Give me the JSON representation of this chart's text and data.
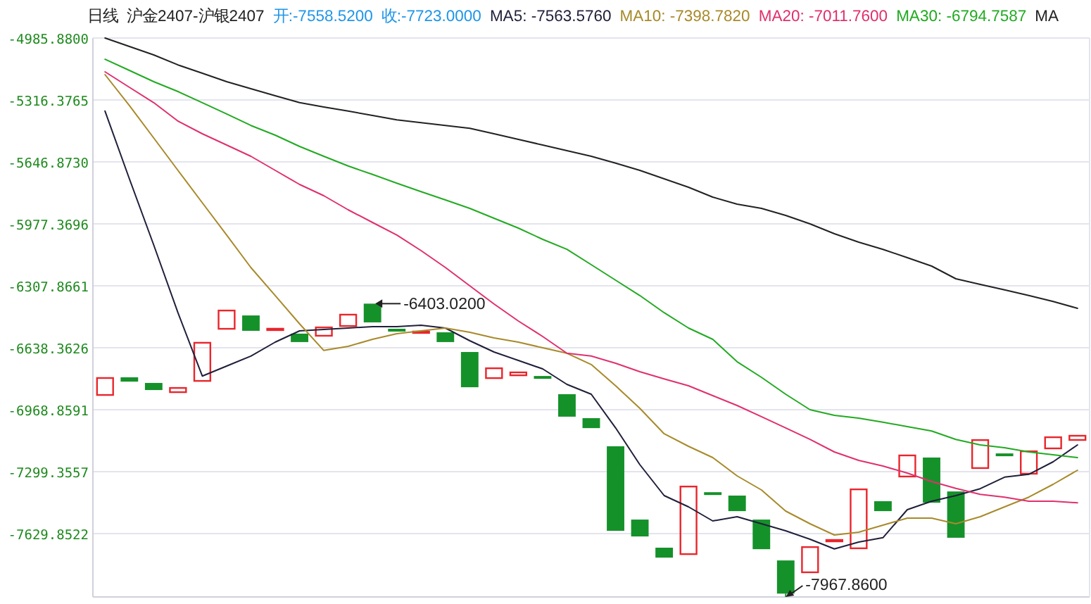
{
  "chart_data": {
    "type": "candlestick",
    "title": "日线",
    "subtitle": "沪金2407-沪银2407",
    "annotations": [
      "开:-7558.5200",
      "收:-7723.0000",
      "-6403.0200",
      "-7967.8600"
    ],
    "categories": [
      null,
      null,
      null,
      null,
      null,
      null,
      null,
      null,
      null,
      null,
      null,
      null,
      null,
      null,
      null,
      null,
      null,
      null,
      null,
      null,
      null,
      null,
      null,
      null,
      null,
      null,
      null,
      null,
      null,
      null,
      null,
      null,
      null,
      null,
      null,
      null,
      null,
      null,
      null,
      null,
      null
    ],
    "ohlc": [
      [
        -6894,
        -6796,
        -6894,
        -6796
      ],
      [
        -6796,
        -6796,
        -6819,
        -6819
      ],
      [
        -6826,
        -6826,
        -6864,
        -6864
      ],
      [
        -6879,
        -6849,
        -6879,
        -6849
      ],
      [
        -6819,
        -6608,
        -6819,
        -6608
      ],
      [
        -6541,
        -6436,
        -6541,
        -6436
      ],
      [
        -6466,
        -6466,
        -6548,
        -6548
      ],
      [
        -6548,
        -6533,
        -6548,
        -6533
      ],
      [
        -6563,
        -6563,
        -6608,
        -6608
      ],
      [
        -6578,
        -6526,
        -6578,
        -6526
      ],
      [
        -6526,
        -6458,
        -6526,
        -6458
      ],
      [
        -6403.02,
        -6403.02,
        -6503,
        -6503
      ],
      [
        -6537,
        -6537,
        -6544,
        -6544
      ],
      [
        -6556,
        -6548,
        -6556,
        -6548
      ],
      [
        -6556,
        -6556,
        -6608,
        -6608
      ],
      [
        -6661,
        -6661,
        -6849,
        -6849
      ],
      [
        -6804,
        -6744,
        -6804,
        -6744
      ],
      [
        -6789,
        -6766,
        -6789,
        -6766
      ],
      [
        -6789,
        -6789,
        -6804,
        -6804
      ],
      [
        -6886,
        -6886,
        -7006,
        -7006
      ],
      [
        -7014,
        -7014,
        -7067,
        -7067
      ],
      [
        -7164,
        -7164,
        -7615,
        -7615
      ],
      [
        -7555,
        -7555,
        -7645,
        -7645
      ],
      [
        -7705,
        -7705,
        -7758,
        -7758
      ],
      [
        -7743,
        -7375,
        -7743,
        -7375
      ],
      [
        -7409,
        -7409,
        -7416,
        -7416
      ],
      [
        -7427,
        -7427,
        -7510,
        -7510
      ],
      [
        -7555,
        -7555,
        -7713,
        -7713
      ],
      [
        -7773,
        -7773,
        -7967.86,
        -7950
      ],
      [
        -7840,
        -7698,
        -7840,
        -7698
      ],
      [
        -7667,
        -7660,
        -7667,
        -7660
      ],
      [
        -7712,
        -7390,
        -7712,
        -7390
      ],
      [
        -7457,
        -7457,
        -7510,
        -7510
      ],
      [
        -7329,
        -7209,
        -7329,
        -7209
      ],
      [
        -7224,
        -7224,
        -7465,
        -7465
      ],
      [
        -7405,
        -7405,
        -7652,
        -7652
      ],
      [
        -7284,
        -7127,
        -7284,
        -7127
      ],
      [
        -7202,
        -7202,
        -7209,
        -7209
      ],
      [
        -7314,
        -7187,
        -7314,
        -7187
      ],
      [
        -7179,
        -7112,
        -7179,
        -7112
      ],
      [
        -7134,
        -7104,
        -7134,
        -7104
      ]
    ],
    "series": [
      {
        "name": "MA5: -7563.5760",
        "type": "line",
        "color": "#1f1f3a",
        "values": [
          -5376,
          -5737,
          -6090,
          -6451,
          -6789,
          -6736,
          -6683,
          -6608,
          -6548,
          -6541,
          -6533,
          -6526,
          -6526,
          -6518,
          -6533,
          -6601,
          -6661,
          -6706,
          -6751,
          -6834,
          -6886,
          -7066,
          -7262,
          -7427,
          -7487,
          -7562,
          -7540,
          -7577,
          -7615,
          -7660,
          -7712,
          -7675,
          -7652,
          -7502,
          -7457,
          -7427,
          -7390,
          -7329,
          -7314,
          -7247,
          -7157
        ]
      },
      {
        "name": "MA10: -7398.7820",
        "type": "line",
        "color": "#a88a2a",
        "values": [
          -5181,
          -5346,
          -5519,
          -5692,
          -5865,
          -6037,
          -6210,
          -6360,
          -6511,
          -6653,
          -6631,
          -6593,
          -6563,
          -6548,
          -6533,
          -6556,
          -6586,
          -6608,
          -6638,
          -6668,
          -6728,
          -6841,
          -6961,
          -7097,
          -7164,
          -7224,
          -7322,
          -7397,
          -7510,
          -7577,
          -7637,
          -7622,
          -7585,
          -7547,
          -7547,
          -7577,
          -7540,
          -7487,
          -7435,
          -7367,
          -7292
        ]
      },
      {
        "name": "MA20: -7011.7600",
        "type": "line",
        "color": "#e0306e",
        "values": [
          -5166,
          -5249,
          -5331,
          -5429,
          -5497,
          -5557,
          -5617,
          -5692,
          -5767,
          -5827,
          -5902,
          -5970,
          -6037,
          -6120,
          -6210,
          -6308,
          -6405,
          -6496,
          -6578,
          -6668,
          -6683,
          -6721,
          -6766,
          -6804,
          -6841,
          -6894,
          -6946,
          -7006,
          -7066,
          -7127,
          -7194,
          -7239,
          -7269,
          -7307,
          -7352,
          -7389,
          -7420,
          -7435,
          -7457,
          -7457,
          -7465
        ]
      },
      {
        "name": "MA30: -6794.7587",
        "type": "line",
        "color": "#22aa22",
        "values": [
          -5099,
          -5159,
          -5219,
          -5271,
          -5331,
          -5391,
          -5452,
          -5504,
          -5564,
          -5617,
          -5669,
          -5714,
          -5760,
          -5805,
          -5850,
          -5895,
          -5947,
          -6000,
          -6060,
          -6113,
          -6195,
          -6278,
          -6360,
          -6451,
          -6533,
          -6593,
          -6713,
          -6796,
          -6886,
          -6969,
          -6999,
          -7014,
          -7036,
          -7059,
          -7082,
          -7127,
          -7157,
          -7172,
          -7194,
          -7209,
          -7224
        ]
      },
      {
        "name": "MA",
        "type": "line",
        "color": "#222222",
        "values": [
          -4986,
          -5031,
          -5076,
          -5129,
          -5174,
          -5219,
          -5256,
          -5294,
          -5331,
          -5354,
          -5376,
          -5399,
          -5422,
          -5437,
          -5452,
          -5467,
          -5497,
          -5527,
          -5557,
          -5587,
          -5617,
          -5654,
          -5692,
          -5737,
          -5782,
          -5835,
          -5872,
          -5895,
          -5932,
          -5977,
          -6030,
          -6075,
          -6113,
          -6158,
          -6203,
          -6270,
          -6300,
          -6330,
          -6360,
          -6391,
          -6428
        ]
      }
    ],
    "ylim": [
      -7967.86,
      -4985.88
    ],
    "yticks": [
      {
        "value": -4985.88,
        "label": "-4985.8800"
      },
      {
        "value": -5316.3765,
        "label": "-5316.3765"
      },
      {
        "value": -5646.873,
        "label": "-5646.8730"
      },
      {
        "value": -5977.3696,
        "label": "-5977.3696"
      },
      {
        "value": -6307.8661,
        "label": "-6307.8661"
      },
      {
        "value": -6638.3626,
        "label": "-6638.3626"
      },
      {
        "value": -6968.8591,
        "label": "-6968.8591"
      },
      {
        "value": -7299.3557,
        "label": "-7299.3557"
      },
      {
        "value": -7629.8522,
        "label": "-7629.8522"
      }
    ],
    "grid": "y",
    "legend": "top",
    "marker": "none",
    "line_style": "solid"
  }
}
